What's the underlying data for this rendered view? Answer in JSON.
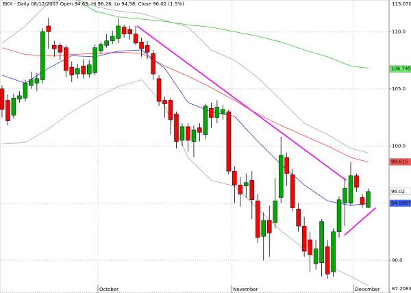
{
  "chart_data": {
    "type": "candlestick",
    "title": "BKX - Daily 08/12/2007 Open 94.63, Hi 96.26, Lo 94.58, Close 96.02 (1.5%)",
    "up_color": "#00aa00",
    "down_color": "#ff0000",
    "grid": true,
    "xlim": [
      -0.35,
      66.6
    ],
    "xticks": [
      {
        "value": 16.5,
        "label": "October"
      },
      {
        "value": 39.5,
        "label": "November"
      },
      {
        "value": 60.5,
        "label": "December"
      }
    ],
    "ylim": [
      87.2083,
      113.07
    ],
    "yticks": [
      {
        "value": 113.07,
        "label": "113.070"
      },
      {
        "value": 110,
        "label": "110.0"
      },
      {
        "value": 105,
        "label": "105.0"
      },
      {
        "value": 100,
        "label": "100.0"
      },
      {
        "value": 95,
        "label": "95.0"
      },
      {
        "value": 90,
        "label": "90.0"
      },
      {
        "value": 87.2083,
        "label": "87.2083"
      }
    ],
    "open": [
      105.0,
      104.0,
      102.7,
      104.1,
      104.2,
      105.3,
      105.5,
      105.8,
      110.5,
      108.8,
      108.8,
      108.6,
      106.9,
      106.3,
      107.0,
      106.3,
      106.4,
      108.3,
      108.8,
      109.2,
      109.4,
      110.4,
      110.2,
      109.8,
      109.1,
      108.8,
      108.1,
      105.9,
      104.0,
      104.0,
      102.8,
      100.5,
      101.7,
      100.4,
      101.6,
      101.0,
      103.3,
      102.5,
      102.8,
      103.0,
      97.8,
      96.6,
      96.5,
      97.0,
      95.2,
      92.1,
      93.5,
      93.3,
      95.5,
      99.0,
      97.5,
      94.5,
      93.0,
      91.8,
      89.7,
      89.8,
      91.2,
      89.0,
      92.5,
      95.0,
      95.0,
      97.4,
      95.5,
      94.63
    ],
    "high": [
      105.3,
      104.5,
      104.6,
      104.8,
      105.8,
      106.5,
      106.4,
      110.3,
      111.2,
      109.2,
      109.0,
      108.8,
      107.4,
      107.2,
      107.6,
      107.5,
      108.9,
      109.1,
      109.8,
      110.1,
      111.2,
      110.6,
      110.5,
      110.5,
      109.5,
      109.2,
      108.4,
      106.2,
      104.3,
      104.2,
      103.0,
      102.0,
      102.0,
      101.8,
      102.0,
      103.7,
      103.8,
      104.0,
      103.6,
      103.2,
      98.2,
      97.3,
      97.6,
      97.8,
      95.8,
      94.2,
      94.8,
      97.2,
      100.8,
      99.4,
      98.0,
      95.0,
      93.8,
      92.5,
      91.8,
      93.6,
      91.8,
      92.8,
      95.6,
      97.2,
      98.6,
      97.6,
      95.8,
      96.26
    ],
    "low": [
      102.5,
      101.8,
      102.4,
      103.8,
      103.9,
      105.0,
      104.8,
      105.5,
      108.5,
      107.8,
      107.5,
      106.0,
      105.6,
      105.9,
      105.9,
      106.0,
      106.2,
      108.0,
      108.6,
      108.9,
      109.0,
      109.5,
      109.3,
      108.8,
      107.8,
      107.6,
      105.8,
      103.5,
      102.5,
      101.0,
      99.8,
      100.0,
      99.5,
      99.0,
      100.4,
      100.6,
      101.6,
      102.0,
      102.3,
      97.5,
      95.0,
      94.7,
      95.5,
      93.6,
      91.5,
      90.0,
      90.3,
      92.8,
      95.0,
      96.5,
      94.3,
      92.5,
      90.3,
      89.0,
      89.2,
      88.6,
      88.4,
      88.6,
      92.0,
      93.0,
      94.8,
      96.0,
      94.6,
      94.58
    ],
    "close": [
      103.2,
      102.2,
      104.2,
      104.4,
      105.5,
      105.8,
      105.9,
      110.0,
      110.0,
      108.5,
      108.2,
      106.6,
      106.2,
      106.8,
      106.3,
      107.1,
      108.6,
      108.9,
      109.2,
      109.6,
      110.5,
      109.8,
      109.8,
      109.0,
      108.5,
      108.2,
      106.3,
      103.9,
      103.7,
      102.3,
      100.4,
      101.7,
      100.5,
      101.4,
      101.2,
      103.5,
      102.5,
      103.4,
      103.2,
      97.8,
      96.6,
      95.8,
      96.8,
      95.3,
      92.0,
      93.5,
      92.4,
      95.2,
      99.2,
      97.6,
      94.6,
      93.0,
      90.8,
      90.5,
      91.0,
      93.4,
      88.8,
      92.5,
      95.3,
      96.3,
      97.4,
      96.4,
      94.9,
      96.02
    ],
    "overlays": [
      {
        "color": "#aaaaaa",
        "x": [
          0,
          4,
          8,
          12,
          16,
          20,
          24,
          28,
          32,
          36,
          40,
          44,
          48,
          52,
          56,
          60,
          63
        ],
        "values": [
          109.0,
          110.5,
          112.5,
          113.0,
          112.2,
          111.8,
          111.6,
          111.0,
          110.4,
          108.4,
          107.5,
          106.0,
          104.0,
          102.0,
          101.0,
          99.8,
          99.4
        ]
      },
      {
        "color": "#aaaaaa",
        "x": [
          0,
          4,
          8,
          12,
          16,
          20,
          24,
          28,
          32,
          36,
          40,
          44,
          48,
          52,
          56,
          60,
          63
        ],
        "values": [
          100.2,
          100.3,
          101.5,
          103.0,
          104.2,
          105.2,
          105.8,
          103.5,
          99.0,
          97.0,
          96.5,
          94.5,
          92.6,
          91.0,
          89.6,
          88.6,
          87.8
        ]
      },
      {
        "color": "#33cc33",
        "x": [
          12,
          16,
          20,
          24,
          28,
          32,
          36,
          40,
          44,
          48,
          52,
          56,
          60,
          63
        ],
        "values": [
          113.0,
          111.8,
          111.3,
          111.1,
          110.9,
          110.6,
          110.4,
          110.0,
          109.6,
          109.1,
          108.4,
          107.8,
          107.0,
          106.8
        ]
      },
      {
        "color": "#ff4444",
        "x": [
          0,
          4,
          8,
          12,
          16,
          20,
          24,
          28,
          32,
          36,
          40,
          44,
          48,
          52,
          56,
          60,
          63
        ],
        "values": [
          108.6,
          108.0,
          107.9,
          108.0,
          108.1,
          108.2,
          108.1,
          107.0,
          106.1,
          105.1,
          104.0,
          102.8,
          101.8,
          100.9,
          100.0,
          99.0,
          98.6
        ]
      },
      {
        "color": "#3333ff",
        "x": [
          0,
          4,
          8,
          12,
          16,
          20,
          24,
          28,
          32,
          36,
          40,
          44,
          48,
          52,
          56,
          60,
          63
        ],
        "values": [
          106.2,
          105.5,
          106.8,
          107.9,
          107.8,
          108.3,
          108.4,
          106.8,
          103.8,
          103.0,
          102.6,
          100.4,
          98.4,
          96.6,
          95.2,
          94.8,
          95.0
        ]
      }
    ],
    "trendlines": [
      {
        "color": "#ff00ff",
        "x": [
          23.2,
          59.2
        ],
        "values": [
          110.5,
          97.0
        ]
      },
      {
        "color": "#ff00ff",
        "x": [
          58.9,
          64.3
        ],
        "values": [
          92.2,
          94.6
        ]
      }
    ],
    "price_labels": [
      {
        "value": 106.745,
        "color": "#66ee66"
      },
      {
        "value": 98.615,
        "color": "#ff5555"
      },
      {
        "value": 96.02,
        "color": "#ffffff"
      },
      {
        "value": 94.9987,
        "color": "#4466ff"
      }
    ]
  }
}
